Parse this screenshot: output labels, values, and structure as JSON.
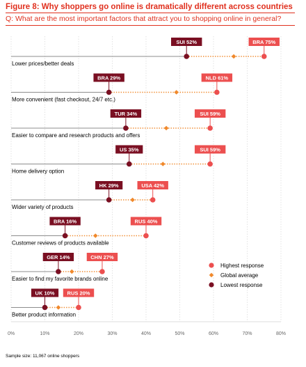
{
  "figure": {
    "title": "Figure 8: Why shoppers go online is dramatically different across countries",
    "question": "Q: What are the most important factors that attract you to shopping online in general?",
    "sample_note": "Sample size: 11,067 online shoppers"
  },
  "colors": {
    "highest": "#ec4f4f",
    "global": "#f0892c",
    "lowest": "#7a0f22",
    "accent": "#e0301e",
    "axis_text": "#666666",
    "line": "#666666",
    "grid": "#d0d0d0"
  },
  "chart_data": {
    "type": "dot-range",
    "xlim": [
      0,
      80
    ],
    "x_ticks": [
      0,
      10,
      20,
      30,
      40,
      50,
      60,
      70,
      80
    ],
    "x_tick_suffix": "%",
    "legend": {
      "placement": "right",
      "entries": [
        {
          "key": "highest",
          "label": "Highest response"
        },
        {
          "key": "global",
          "label": "Global average"
        },
        {
          "key": "lowest",
          "label": "Lowest response"
        }
      ]
    },
    "rows": [
      {
        "label": "Lower prices/better deals",
        "low": {
          "country": "SUI",
          "value": 52
        },
        "global": 66,
        "high": {
          "country": "BRA",
          "value": 75
        }
      },
      {
        "label": "More convenient (fast checkout, 24/7 etc.)",
        "low": {
          "country": "BRA",
          "value": 29
        },
        "global": 49,
        "high": {
          "country": "NLD",
          "value": 61
        }
      },
      {
        "label": "Easier to compare and research products and offers",
        "low": {
          "country": "TUR",
          "value": 34
        },
        "global": 46,
        "high": {
          "country": "SUI",
          "value": 59
        }
      },
      {
        "label": "Home delivery option",
        "low": {
          "country": "US",
          "value": 35
        },
        "global": 45,
        "high": {
          "country": "SUI",
          "value": 59
        }
      },
      {
        "label": "Wider variety of products",
        "low": {
          "country": "HK",
          "value": 29
        },
        "global": 36,
        "high": {
          "country": "USA",
          "value": 42
        }
      },
      {
        "label": "Customer reviews of products available",
        "low": {
          "country": "BRA",
          "value": 16
        },
        "global": 25,
        "high": {
          "country": "RUS",
          "value": 40
        }
      },
      {
        "label": "Easier to find my favorite brands online",
        "low": {
          "country": "GER",
          "value": 14
        },
        "global": 18,
        "high": {
          "country": "CHN",
          "value": 27
        }
      },
      {
        "label": "Better product information",
        "low": {
          "country": "UK",
          "value": 10
        },
        "global": 14,
        "high": {
          "country": "RUS",
          "value": 20
        }
      }
    ]
  }
}
